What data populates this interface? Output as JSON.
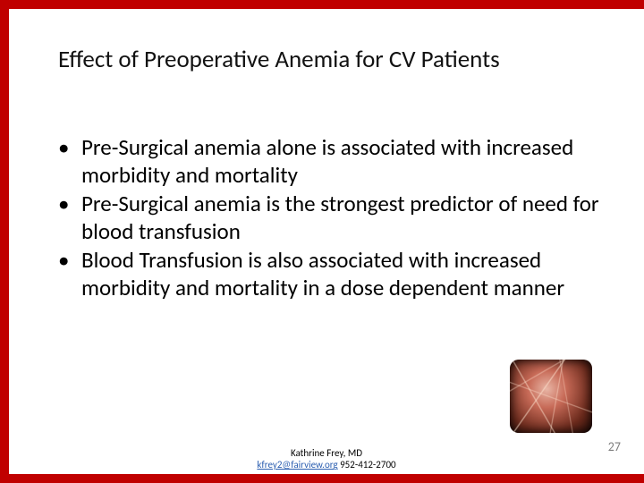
{
  "slide": {
    "title": "Effect of Preoperative Anemia for CV Patients",
    "bullets": [
      "Pre-Surgical anemia alone is associated with increased morbidity and mortality",
      "Pre-Surgical anemia is the strongest predictor of need for blood transfusion",
      "Blood Transfusion is also associated with increased morbidity and mortality in a dose dependent manner"
    ],
    "footer": {
      "author": "Kathrine Frey, MD",
      "email": "kfrey2@fairview.org",
      "phone": " 952-412-2700"
    },
    "page_number": "27",
    "colors": {
      "border": "#c00000",
      "background": "#ffffff",
      "text": "#000000",
      "link": "#2a5db0",
      "pagenum": "#7f7f7f"
    },
    "font": {
      "title_size_pt": 27,
      "body_size_pt": 25,
      "footer_size_pt": 11,
      "pagenum_size_pt": 14,
      "family": "Calibri"
    }
  }
}
